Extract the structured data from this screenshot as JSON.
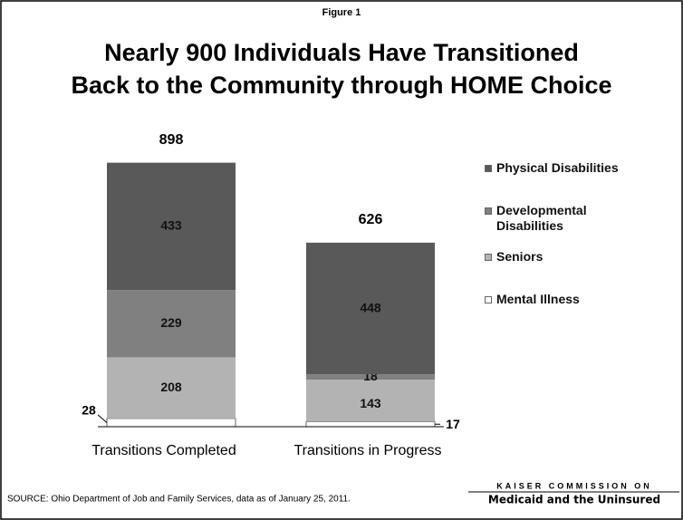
{
  "chart_data": {
    "type": "stacked_bar",
    "figure_label": "Figure 1",
    "title": [
      "Nearly 900 Individuals Have Transitioned",
      "Back to the Community through HOME Choice"
    ],
    "categories": [
      "Transitions Completed",
      "Transitions in Progress"
    ],
    "series": [
      {
        "name": "Mental Illness",
        "color": "#ffffff",
        "values": [
          28,
          17
        ]
      },
      {
        "name": "Seniors",
        "color": "#b3b3b3",
        "values": [
          208,
          143
        ]
      },
      {
        "name": "Developmental Disabilities",
        "color": "#808080",
        "values": [
          229,
          18
        ]
      },
      {
        "name": "Physical Disabilities",
        "color": "#595959",
        "values": [
          433,
          448
        ]
      }
    ],
    "totals": [
      898,
      626
    ],
    "source": "SOURCE: Ohio Department of Job and Family Services, data as of January 25, 2011.",
    "logo": [
      "KAISER COMMISSION ON",
      "Medicaid and the Uninsured"
    ]
  }
}
